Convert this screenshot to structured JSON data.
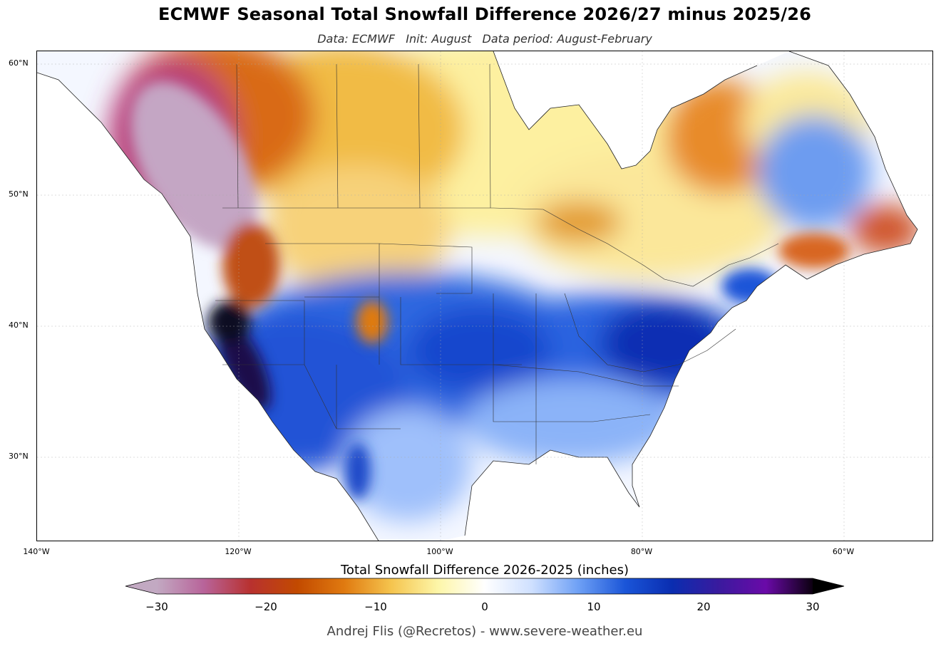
{
  "title": "ECMWF Seasonal Total Snowfall Difference 2026/27 minus 2025/26",
  "subtitle": "Data: ECMWF   Init: August   Data period: August-February",
  "map": {
    "projection": "plate-carree",
    "extent_lon": [
      -140,
      -51
    ],
    "extent_lat": [
      23.5,
      61
    ],
    "lat_ticks": [
      "60°N",
      "50°N",
      "40°N",
      "30°N"
    ],
    "lon_ticks": [
      "140°W",
      "120°W",
      "100°W",
      "80°W",
      "60°W"
    ],
    "regions": [
      {
        "name": "sierra-nevada-max",
        "lon": -118.5,
        "lat": 39.0,
        "value": 30
      },
      {
        "name": "great-basin",
        "lon": -116,
        "lat": 38.5,
        "value": 16
      },
      {
        "name": "central-plains",
        "lon": -97,
        "lat": 39.5,
        "value": 12
      },
      {
        "name": "ohio-valley",
        "lon": -86,
        "lat": 38.5,
        "value": 12
      },
      {
        "name": "appalachians",
        "lon": -80,
        "lat": 38.5,
        "value": 15
      },
      {
        "name": "northeast-us",
        "lon": -75,
        "lat": 42,
        "value": 10
      },
      {
        "name": "southwest",
        "lon": -110,
        "lat": 34,
        "value": 12
      },
      {
        "name": "british-columbia",
        "lon": -125,
        "lat": 54,
        "value": -25
      },
      {
        "name": "alberta",
        "lon": -116,
        "lat": 55,
        "value": -15
      },
      {
        "name": "prairies",
        "lon": -108,
        "lat": 54,
        "value": -6
      },
      {
        "name": "great-lakes",
        "lon": -86,
        "lat": 46,
        "value": -8
      },
      {
        "name": "newfoundland",
        "lon": -57,
        "lat": 48.5,
        "value": -25
      },
      {
        "name": "labrador",
        "lon": -62,
        "lat": 54,
        "value": 6
      },
      {
        "name": "hudson-east",
        "lon": -75,
        "lat": 52,
        "value": -12
      }
    ]
  },
  "colorbar": {
    "label": "Total Snowfall Difference 2026-2025 (inches)",
    "min": -30,
    "max": 30,
    "ticks": [
      "−30",
      "−20",
      "−10",
      "0",
      "10",
      "20",
      "30"
    ],
    "colors": [
      "#c2a9c2",
      "#b8649a",
      "#b8312f",
      "#c24a00",
      "#e07a10",
      "#f5c44e",
      "#fdf6a8",
      "#ffffff",
      "#cfe0ff",
      "#6ea0f5",
      "#1a55d8",
      "#0a2db0",
      "#3a1a9e",
      "#6a0aa8",
      "#0c0010"
    ]
  },
  "credit": "Andrej Flis (@Recretos) - www.severe-weather.eu"
}
